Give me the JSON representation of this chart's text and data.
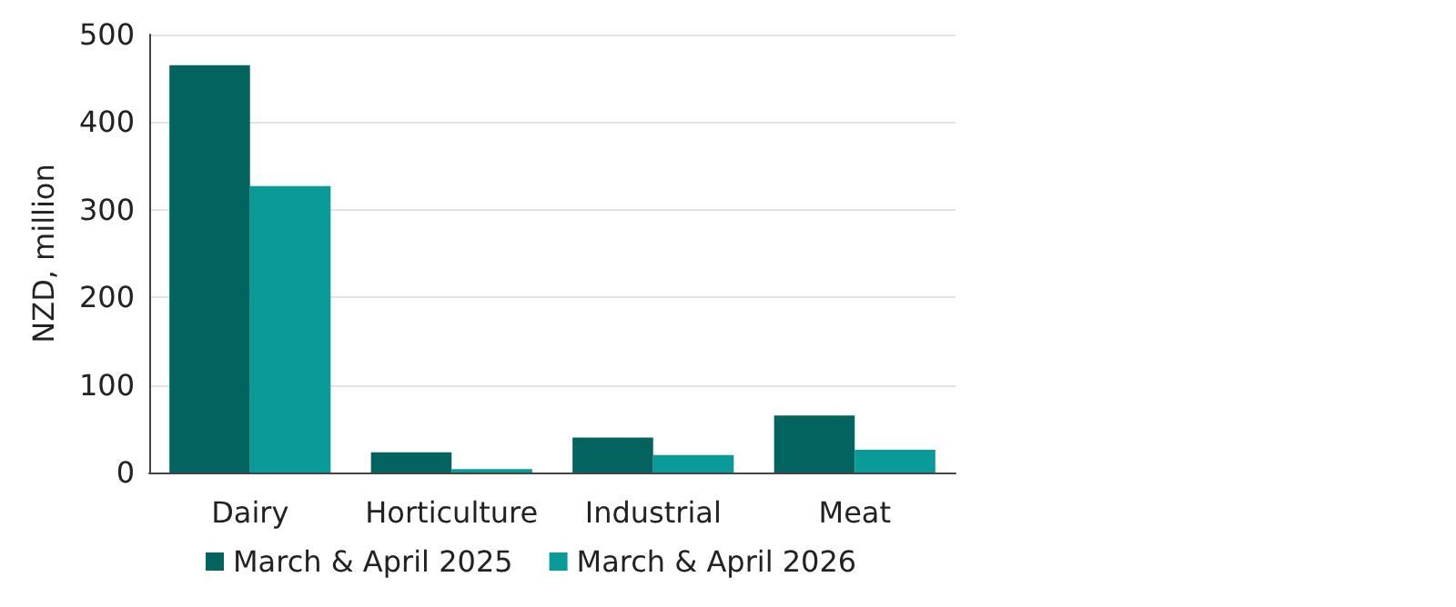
{
  "chart_data": {
    "type": "bar",
    "ylabel": "NZD, million",
    "categories": [
      "Dairy",
      "Horticulture",
      "Industrial",
      "Meat"
    ],
    "series": [
      {
        "name": "March & April 2025",
        "color": "#03645f",
        "values": [
          465,
          23,
          40,
          65
        ]
      },
      {
        "name": "March & April 2026",
        "color": "#0a9a98",
        "values": [
          327,
          4,
          20,
          26
        ]
      }
    ],
    "ylim": [
      0,
      500
    ],
    "yticks": [
      0,
      100,
      200,
      300,
      400,
      500
    ],
    "grid": "y",
    "legend": "bottom"
  }
}
